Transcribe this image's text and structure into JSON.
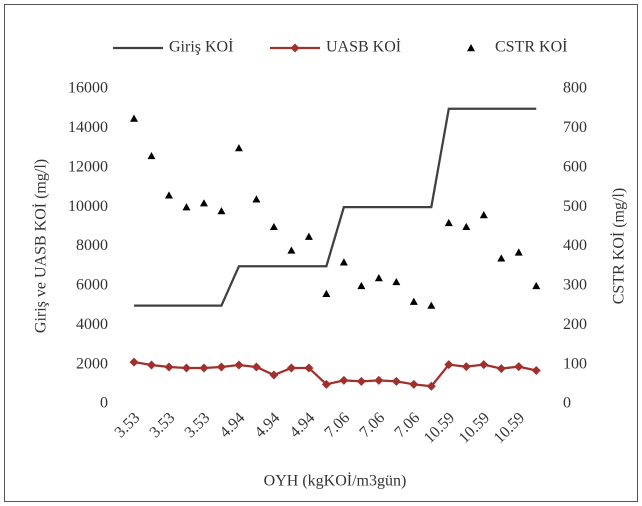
{
  "chart_data": {
    "type": "line",
    "categories": [
      "3.53",
      null,
      "3.53",
      null,
      "3.53",
      null,
      "4.94",
      null,
      "4.94",
      null,
      "4.94",
      null,
      "7.06",
      null,
      "7.06",
      null,
      "7.06",
      null,
      "10.59",
      null,
      "10.59",
      null,
      "10.59",
      null
    ],
    "series": [
      {
        "name": "Giriş KOİ",
        "color": "#404040",
        "style": "line",
        "values": [
          5000,
          5000,
          5000,
          5000,
          5000,
          5000,
          7000,
          7000,
          7000,
          7000,
          7000,
          7000,
          10000,
          10000,
          10000,
          10000,
          10000,
          10000,
          15000,
          15000,
          15000,
          15000,
          15000,
          15000
        ]
      },
      {
        "name": "UASB KOİ",
        "color": "#a0302c",
        "style": "line-marker",
        "values": [
          2130,
          1980,
          1880,
          1830,
          1830,
          1880,
          1980,
          1880,
          1470,
          1830,
          1830,
          1000,
          1200,
          1150,
          1200,
          1150,
          1000,
          900,
          2000,
          1900,
          2000,
          1800,
          1900,
          1700
        ]
      },
      {
        "name": "CSTR KOİ",
        "color": "#000000",
        "style": "marker",
        "axis": "y2",
        "values": [
          725,
          630,
          530,
          500,
          510,
          490,
          650,
          520,
          450,
          390,
          425,
          280,
          360,
          300,
          320,
          310,
          260,
          250,
          460,
          450,
          480,
          370,
          385,
          300
        ]
      }
    ],
    "x_label": "OYH (kgKOİ/m3gün)",
    "y_label": "Giriş ve UASB KOİ (mg/l)",
    "y2_label": "CSTR KOİ (mg/l)",
    "ylim": [
      0,
      16000
    ],
    "yticks": [
      0,
      2000,
      4000,
      6000,
      8000,
      10000,
      12000,
      14000,
      16000
    ],
    "y2lim": [
      0,
      800
    ],
    "y2ticks": [
      0,
      100,
      200,
      300,
      400,
      500,
      600,
      700,
      800
    ],
    "grid": false,
    "legend": "top"
  }
}
